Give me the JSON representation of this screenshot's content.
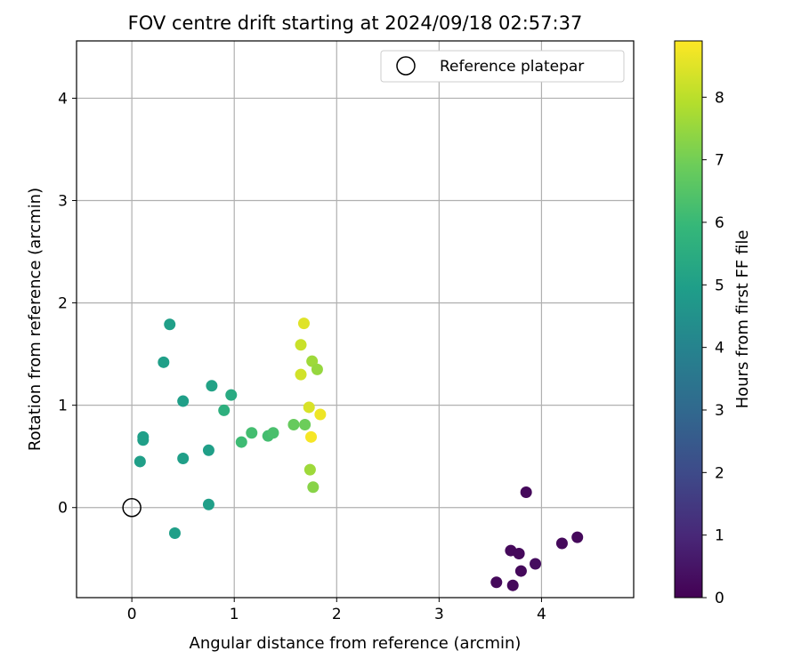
{
  "chart_data": {
    "type": "scatter",
    "title": "FOV centre drift starting at 2024/09/18 02:57:37",
    "xlabel": "Angular distance from reference (arcmin)",
    "ylabel": "Rotation from reference (arcmin)",
    "xlim": [
      -0.54,
      4.9
    ],
    "ylim": [
      -0.88,
      4.56
    ],
    "xticks": [
      0,
      1,
      2,
      3,
      4
    ],
    "yticks": [
      0,
      1,
      2,
      3,
      4
    ],
    "grid": true,
    "legend": {
      "position": "top-right",
      "entries": [
        "Reference platepar"
      ]
    },
    "reference_point": {
      "x": 0,
      "y": 0,
      "label": "Reference platepar"
    },
    "colorbar": {
      "label": "Hours from first FF file",
      "colormap": "viridis",
      "range": [
        0,
        8.9
      ],
      "ticks": [
        0,
        1,
        2,
        3,
        4,
        5,
        6,
        7,
        8
      ]
    },
    "points": [
      {
        "x": 3.85,
        "y": 0.15,
        "hours": 0.2
      },
      {
        "x": 3.7,
        "y": -0.42,
        "hours": 0.2
      },
      {
        "x": 3.78,
        "y": -0.45,
        "hours": 0.2
      },
      {
        "x": 3.8,
        "y": -0.62,
        "hours": 0.2
      },
      {
        "x": 3.94,
        "y": -0.55,
        "hours": 0.3
      },
      {
        "x": 3.56,
        "y": -0.73,
        "hours": 0.2
      },
      {
        "x": 3.72,
        "y": -0.76,
        "hours": 0.2
      },
      {
        "x": 4.2,
        "y": -0.35,
        "hours": 0.2
      },
      {
        "x": 4.35,
        "y": -0.29,
        "hours": 0.2
      },
      {
        "x": 0.37,
        "y": 1.79,
        "hours": 5.0
      },
      {
        "x": 0.31,
        "y": 1.42,
        "hours": 5.0
      },
      {
        "x": 0.11,
        "y": 0.69,
        "hours": 5.0
      },
      {
        "x": 0.11,
        "y": 0.66,
        "hours": 5.0
      },
      {
        "x": 0.08,
        "y": 0.45,
        "hours": 5.0
      },
      {
        "x": 0.42,
        "y": -0.25,
        "hours": 5.0
      },
      {
        "x": 0.5,
        "y": 1.04,
        "hours": 5.0
      },
      {
        "x": 0.5,
        "y": 0.48,
        "hours": 5.0
      },
      {
        "x": 0.75,
        "y": 0.56,
        "hours": 5.0
      },
      {
        "x": 0.75,
        "y": 0.03,
        "hours": 5.0
      },
      {
        "x": 0.78,
        "y": 1.19,
        "hours": 5.1
      },
      {
        "x": 0.97,
        "y": 1.1,
        "hours": 5.4
      },
      {
        "x": 0.9,
        "y": 0.95,
        "hours": 5.6
      },
      {
        "x": 1.07,
        "y": 0.64,
        "hours": 6.1
      },
      {
        "x": 1.17,
        "y": 0.73,
        "hours": 6.2
      },
      {
        "x": 1.33,
        "y": 0.7,
        "hours": 6.2
      },
      {
        "x": 1.38,
        "y": 0.73,
        "hours": 6.3
      },
      {
        "x": 1.58,
        "y": 0.81,
        "hours": 6.8
      },
      {
        "x": 1.69,
        "y": 0.81,
        "hours": 6.9
      },
      {
        "x": 1.68,
        "y": 1.8,
        "hours": 8.5
      },
      {
        "x": 1.65,
        "y": 1.59,
        "hours": 8.2
      },
      {
        "x": 1.76,
        "y": 1.43,
        "hours": 7.6
      },
      {
        "x": 1.81,
        "y": 1.35,
        "hours": 7.5
      },
      {
        "x": 1.65,
        "y": 1.3,
        "hours": 8.3
      },
      {
        "x": 1.73,
        "y": 0.98,
        "hours": 8.4
      },
      {
        "x": 1.84,
        "y": 0.91,
        "hours": 8.7
      },
      {
        "x": 1.75,
        "y": 0.69,
        "hours": 8.8
      },
      {
        "x": 1.74,
        "y": 0.37,
        "hours": 7.6
      },
      {
        "x": 1.77,
        "y": 0.2,
        "hours": 7.3
      }
    ]
  }
}
